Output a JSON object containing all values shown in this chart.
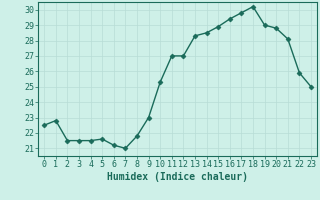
{
  "x": [
    0,
    1,
    2,
    3,
    4,
    5,
    6,
    7,
    8,
    9,
    10,
    11,
    12,
    13,
    14,
    15,
    16,
    17,
    18,
    19,
    20,
    21,
    22,
    23
  ],
  "y": [
    22.5,
    22.8,
    21.5,
    21.5,
    21.5,
    21.6,
    21.2,
    21.0,
    21.8,
    23.0,
    25.3,
    27.0,
    27.0,
    28.3,
    28.5,
    28.9,
    29.4,
    29.8,
    30.2,
    29.0,
    28.8,
    28.1,
    25.9,
    25.0
  ],
  "line_color": "#1a6b5a",
  "marker": "D",
  "markersize": 2.5,
  "linewidth": 1.0,
  "bg_color": "#cef0e8",
  "grid_color": "#b8ddd6",
  "xlabel": "Humidex (Indice chaleur)",
  "xlim": [
    -0.5,
    23.5
  ],
  "ylim": [
    20.5,
    30.5
  ],
  "yticks": [
    21,
    22,
    23,
    24,
    25,
    26,
    27,
    28,
    29,
    30
  ],
  "xticks": [
    0,
    1,
    2,
    3,
    4,
    5,
    6,
    7,
    8,
    9,
    10,
    11,
    12,
    13,
    14,
    15,
    16,
    17,
    18,
    19,
    20,
    21,
    22,
    23
  ],
  "tick_color": "#1a6b5a",
  "label_fontsize": 6,
  "xlabel_fontsize": 7
}
